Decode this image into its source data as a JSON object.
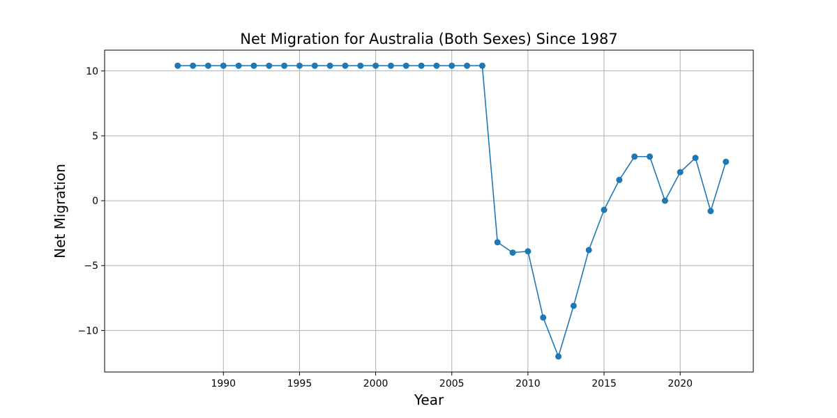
{
  "chart_data": {
    "type": "line",
    "title": "Net Migration for Australia (Both Sexes) Since 1987",
    "xlabel": "Year",
    "ylabel": "Net Migration",
    "xlim": [
      1982.2,
      2024.8
    ],
    "ylim": [
      -13.2,
      11.6
    ],
    "x_ticks": [
      1990,
      1995,
      2000,
      2005,
      2010,
      2015,
      2020
    ],
    "x_tick_labels": [
      "1990",
      "1995",
      "2000",
      "2005",
      "2010",
      "2015",
      "2020"
    ],
    "y_ticks": [
      10,
      5,
      0,
      -5,
      -10
    ],
    "y_tick_labels": [
      "10",
      "5",
      "0",
      "−5",
      "−10"
    ],
    "grid": true,
    "legend": "none",
    "series": [
      {
        "color": "#1f77b4",
        "marker": "circle",
        "x": [
          1987,
          1988,
          1989,
          1990,
          1991,
          1992,
          1993,
          1994,
          1995,
          1996,
          1997,
          1998,
          1999,
          2000,
          2001,
          2002,
          2003,
          2004,
          2005,
          2006,
          2007,
          2008,
          2009,
          2010,
          2011,
          2012,
          2013,
          2014,
          2015,
          2016,
          2017,
          2018,
          2019,
          2020,
          2021,
          2022,
          2023
        ],
        "y": [
          10.4,
          10.4,
          10.4,
          10.4,
          10.4,
          10.4,
          10.4,
          10.4,
          10.4,
          10.4,
          10.4,
          10.4,
          10.4,
          10.4,
          10.4,
          10.4,
          10.4,
          10.4,
          10.4,
          10.4,
          10.4,
          -3.2,
          -4.0,
          -3.9,
          -9.0,
          -12.0,
          -8.1,
          -3.8,
          -0.7,
          1.6,
          3.4,
          3.4,
          0.0,
          2.2,
          3.3,
          -0.8,
          3.0
        ]
      }
    ]
  }
}
